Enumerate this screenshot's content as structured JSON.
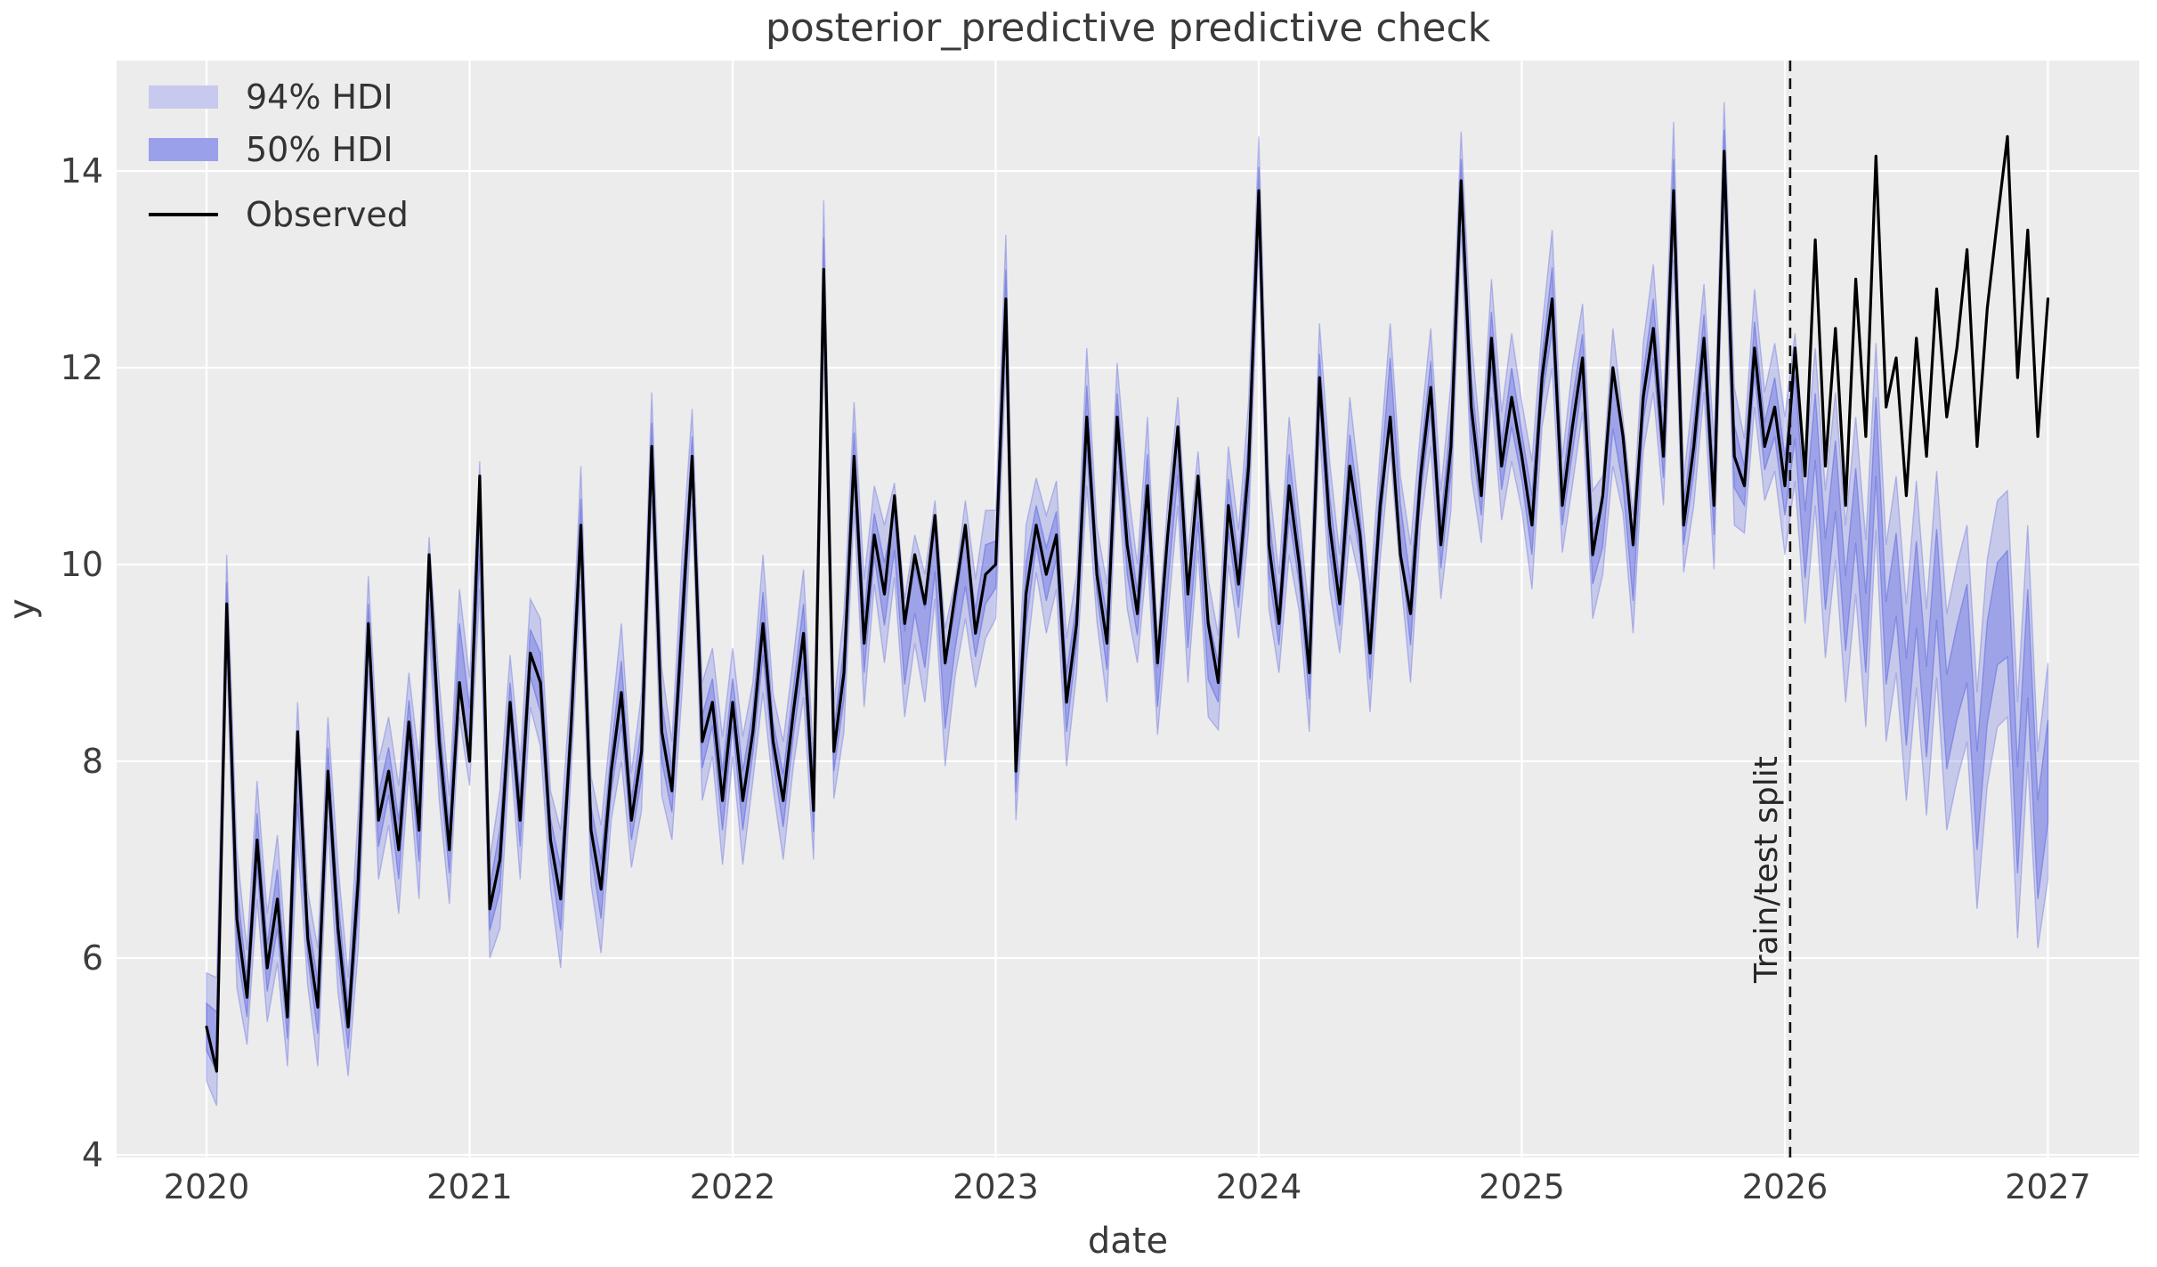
{
  "chart_data": {
    "type": "line",
    "title": "posterior_predictive predictive check",
    "xlabel": "date",
    "ylabel": "y",
    "xlim": [
      2019.66,
      2027.36
    ],
    "ylim": [
      3.95,
      15.1
    ],
    "xticks": [
      "2020",
      "2021",
      "2022",
      "2023",
      "2024",
      "2025",
      "2026",
      "2027"
    ],
    "xtick_years": [
      2020,
      2021,
      2022,
      2023,
      2024,
      2025,
      2026,
      2027
    ],
    "yticks": [
      "4",
      "6",
      "8",
      "10",
      "12",
      "14"
    ],
    "ytick_values": [
      4,
      6,
      8,
      10,
      12,
      14
    ],
    "grid": true,
    "legend": {
      "position": "upper left",
      "entries": [
        {
          "label": "94% HDI",
          "swatch": "#c7c9ee",
          "border": "#aeb2e8"
        },
        {
          "label": "50% HDI",
          "swatch": "#9aa0ea",
          "border": "#7b82e4"
        },
        {
          "label": "Observed",
          "color": "#000000"
        }
      ]
    },
    "annotation": {
      "text": "Train/test split",
      "x": 2026.02,
      "rotation": -90,
      "line_style": "dashed"
    },
    "colors": {
      "figure_background": "#ffffff",
      "axes_background": "#ececec",
      "grid": "#ffffff",
      "observed_line": "#000000",
      "hdi_fill": "#7b84e6",
      "split_line": "#111111",
      "text": "#3a3a3a"
    },
    "x_start": 2020.0,
    "x_step": 0.0384615,
    "n_points": 183,
    "series": [
      {
        "name": "Observed",
        "type": "line",
        "color": "#000000",
        "values": [
          5.3,
          4.85,
          9.6,
          6.4,
          5.6,
          7.2,
          5.9,
          6.6,
          5.4,
          8.3,
          6.2,
          5.5,
          7.9,
          6.3,
          5.3,
          6.8,
          9.4,
          7.4,
          7.9,
          7.1,
          8.4,
          7.3,
          10.1,
          8.2,
          7.1,
          8.8,
          8.0,
          10.9,
          6.5,
          7.0,
          8.6,
          7.4,
          9.1,
          8.8,
          7.2,
          6.6,
          8.3,
          10.4,
          7.3,
          6.7,
          7.9,
          8.7,
          7.4,
          8.1,
          11.2,
          8.3,
          7.7,
          9.4,
          11.1,
          8.2,
          8.6,
          7.6,
          8.6,
          7.6,
          8.3,
          9.4,
          8.2,
          7.6,
          8.5,
          9.3,
          7.5,
          13.0,
          8.1,
          8.9,
          11.1,
          9.2,
          10.3,
          9.7,
          10.7,
          9.4,
          10.1,
          9.6,
          10.5,
          9.0,
          9.7,
          10.4,
          9.3,
          9.9,
          10.0,
          12.7,
          7.9,
          9.7,
          10.4,
          9.9,
          10.3,
          8.6,
          9.4,
          11.5,
          9.9,
          9.2,
          11.5,
          10.2,
          9.5,
          10.8,
          9.0,
          10.3,
          11.4,
          9.7,
          10.9,
          9.4,
          8.8,
          10.6,
          9.8,
          11.0,
          13.8,
          10.2,
          9.4,
          10.8,
          10.0,
          8.9,
          11.9,
          10.4,
          9.6,
          11.0,
          10.3,
          9.1,
          10.6,
          11.5,
          10.1,
          9.5,
          10.9,
          11.8,
          10.2,
          11.2,
          13.9,
          11.6,
          10.7,
          12.3,
          11.0,
          11.7,
          11.1,
          10.4,
          11.9,
          12.7,
          10.6,
          11.4,
          12.1,
          10.1,
          10.7,
          12.0,
          11.3,
          10.2,
          11.7,
          12.4,
          11.1,
          13.8,
          10.4,
          11.2,
          12.3,
          10.6,
          14.2,
          11.1,
          10.8,
          12.2,
          11.2,
          11.6,
          10.8,
          12.2,
          10.9,
          13.3,
          11.0,
          12.4,
          10.6,
          12.9,
          11.3,
          14.15,
          11.6,
          12.1,
          10.7,
          12.3,
          11.1,
          12.8,
          11.5,
          12.2,
          13.2,
          11.2,
          12.6,
          13.5,
          14.35,
          11.9,
          13.4,
          11.3,
          12.7
        ]
      },
      {
        "name": "posterior_predictive_mean",
        "type": "band-center",
        "values": [
          5.3,
          5.15,
          9.6,
          6.4,
          5.6,
          7.2,
          5.9,
          6.6,
          5.4,
          7.9,
          6.2,
          5.5,
          7.9,
          6.3,
          5.3,
          6.8,
          9.4,
          7.4,
          7.9,
          7.1,
          8.4,
          7.3,
          9.8,
          8.2,
          7.1,
          9.1,
          8.3,
          10.4,
          6.5,
          7.0,
          8.6,
          7.4,
          9.1,
          8.8,
          7.2,
          6.6,
          8.3,
          10.4,
          7.3,
          6.7,
          7.9,
          8.7,
          7.4,
          8.1,
          11.2,
          8.3,
          7.7,
          9.4,
          11.1,
          8.2,
          8.6,
          7.6,
          8.6,
          7.6,
          8.3,
          9.4,
          8.2,
          7.6,
          8.5,
          9.3,
          7.5,
          13.0,
          8.1,
          8.9,
          11.1,
          9.2,
          10.3,
          9.7,
          10.35,
          9.05,
          9.75,
          9.25,
          10.15,
          8.65,
          9.35,
          10.05,
          9.3,
          9.9,
          10.0,
          12.7,
          7.9,
          9.7,
          10.4,
          9.9,
          10.3,
          8.6,
          9.4,
          11.5,
          9.9,
          9.2,
          11.5,
          10.2,
          9.5,
          10.8,
          8.75,
          10.05,
          11.15,
          9.45,
          10.65,
          9.15,
          8.8,
          10.6,
          9.8,
          11.0,
          13.8,
          10.2,
          9.4,
          10.8,
          10.0,
          8.9,
          11.9,
          10.4,
          9.6,
          11.0,
          10.3,
          9.1,
          10.6,
          11.8,
          10.4,
          9.5,
          10.9,
          11.8,
          10.2,
          11.2,
          13.9,
          11.6,
          10.7,
          12.3,
          11.0,
          11.7,
          11.1,
          10.4,
          11.9,
          12.7,
          10.6,
          11.4,
          12.1,
          10.1,
          10.4,
          11.7,
          11.0,
          9.9,
          11.7,
          12.4,
          11.1,
          13.8,
          10.4,
          11.2,
          12.3,
          10.6,
          14.2,
          11.1,
          10.8,
          12.2,
          11.2,
          11.6,
          10.8,
          11.6,
          10.2,
          11.4,
          9.9,
          10.9,
          9.5,
          10.6,
          9.3,
          11.3,
          9.2,
          9.9,
          8.6,
          9.8,
          8.5,
          9.9,
          8.4,
          8.9,
          9.3,
          7.6,
          8.9,
          9.5,
          9.6,
          7.4,
          9.2,
          7.1,
          7.9
        ]
      },
      {
        "name": "94% HDI",
        "type": "band",
        "color": "#7b84e6",
        "alpha": 0.33,
        "half_widths": [
          0.55,
          0.65,
          0.5,
          0.7,
          0.48,
          0.6,
          0.55,
          0.65,
          0.5,
          0.7,
          0.48,
          0.6,
          0.55,
          0.65,
          0.5,
          0.7,
          0.48,
          0.6,
          0.55,
          0.65,
          0.5,
          0.7,
          0.48,
          0.6,
          0.55,
          0.65,
          0.55,
          0.65,
          0.5,
          0.7,
          0.48,
          0.6,
          0.55,
          0.65,
          0.5,
          0.7,
          0.48,
          0.6,
          0.55,
          0.65,
          0.5,
          0.7,
          0.48,
          0.6,
          0.55,
          0.65,
          0.5,
          0.7,
          0.48,
          0.6,
          0.55,
          0.65,
          0.55,
          0.65,
          0.5,
          0.7,
          0.48,
          0.6,
          0.55,
          0.65,
          0.5,
          0.7,
          0.48,
          0.6,
          0.55,
          0.65,
          0.5,
          0.7,
          0.48,
          0.6,
          0.55,
          0.65,
          0.5,
          0.7,
          0.48,
          0.6,
          0.55,
          0.65,
          0.55,
          0.65,
          0.5,
          0.7,
          0.48,
          0.6,
          0.55,
          0.65,
          0.5,
          0.7,
          0.48,
          0.6,
          0.55,
          0.65,
          0.5,
          0.7,
          0.48,
          0.6,
          0.55,
          0.65,
          0.5,
          0.7,
          0.48,
          0.6,
          0.55,
          0.65,
          0.55,
          0.65,
          0.5,
          0.7,
          0.48,
          0.6,
          0.55,
          0.65,
          0.5,
          0.7,
          0.48,
          0.6,
          0.55,
          0.65,
          0.5,
          0.7,
          0.48,
          0.6,
          0.55,
          0.65,
          0.5,
          0.7,
          0.48,
          0.6,
          0.55,
          0.65,
          0.55,
          0.65,
          0.5,
          0.7,
          0.48,
          0.6,
          0.55,
          0.65,
          0.5,
          0.7,
          0.48,
          0.6,
          0.55,
          0.65,
          0.5,
          0.7,
          0.48,
          0.6,
          0.55,
          0.65,
          0.5,
          0.7,
          0.48,
          0.6,
          0.55,
          0.65,
          0.7,
          0.75,
          0.8,
          0.8,
          0.85,
          0.85,
          0.9,
          0.9,
          0.95,
          0.95,
          1.0,
          1.0,
          1.0,
          1.05,
          1.05,
          1.05,
          1.1,
          1.1,
          1.1,
          1.1,
          1.15,
          1.15,
          1.15,
          1.2,
          1.2,
          1.0,
          1.1
        ]
      },
      {
        "name": "50% HDI",
        "type": "band",
        "color": "#7b84e6",
        "alpha": 0.55,
        "half_widths": [
          0.24,
          0.3,
          0.22,
          0.32,
          0.2,
          0.27,
          0.24,
          0.3,
          0.22,
          0.32,
          0.2,
          0.27,
          0.24,
          0.3,
          0.22,
          0.32,
          0.2,
          0.27,
          0.24,
          0.3,
          0.22,
          0.32,
          0.2,
          0.27,
          0.24,
          0.3,
          0.24,
          0.3,
          0.22,
          0.32,
          0.2,
          0.27,
          0.24,
          0.3,
          0.22,
          0.32,
          0.2,
          0.27,
          0.24,
          0.3,
          0.22,
          0.32,
          0.2,
          0.27,
          0.24,
          0.3,
          0.22,
          0.32,
          0.2,
          0.27,
          0.24,
          0.3,
          0.24,
          0.3,
          0.22,
          0.32,
          0.2,
          0.27,
          0.24,
          0.3,
          0.22,
          0.32,
          0.2,
          0.27,
          0.24,
          0.3,
          0.22,
          0.32,
          0.2,
          0.27,
          0.24,
          0.3,
          0.22,
          0.32,
          0.2,
          0.27,
          0.24,
          0.3,
          0.24,
          0.3,
          0.22,
          0.32,
          0.2,
          0.27,
          0.24,
          0.3,
          0.22,
          0.32,
          0.2,
          0.27,
          0.24,
          0.3,
          0.22,
          0.32,
          0.2,
          0.27,
          0.24,
          0.3,
          0.22,
          0.32,
          0.2,
          0.27,
          0.24,
          0.3,
          0.24,
          0.3,
          0.22,
          0.32,
          0.2,
          0.27,
          0.24,
          0.3,
          0.22,
          0.32,
          0.2,
          0.27,
          0.24,
          0.3,
          0.22,
          0.32,
          0.2,
          0.27,
          0.24,
          0.3,
          0.22,
          0.32,
          0.2,
          0.27,
          0.24,
          0.3,
          0.24,
          0.3,
          0.22,
          0.32,
          0.2,
          0.27,
          0.24,
          0.3,
          0.22,
          0.32,
          0.2,
          0.27,
          0.24,
          0.3,
          0.22,
          0.32,
          0.2,
          0.27,
          0.24,
          0.3,
          0.22,
          0.32,
          0.2,
          0.27,
          0.24,
          0.3,
          0.3,
          0.32,
          0.34,
          0.34,
          0.36,
          0.36,
          0.38,
          0.38,
          0.4,
          0.4,
          0.42,
          0.42,
          0.44,
          0.44,
          0.46,
          0.46,
          0.48,
          0.48,
          0.5,
          0.5,
          0.52,
          0.52,
          0.54,
          0.54,
          0.55,
          0.5,
          0.52
        ]
      }
    ]
  }
}
